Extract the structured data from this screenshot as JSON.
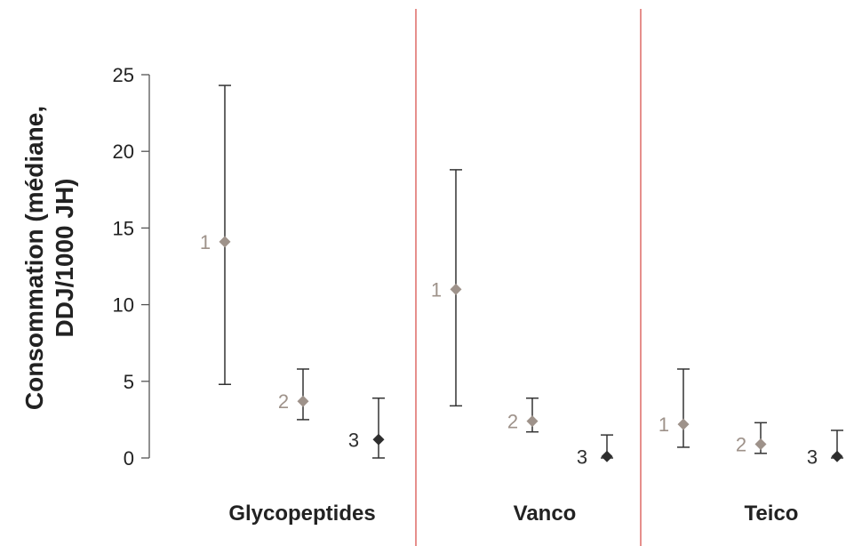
{
  "chart_data": {
    "type": "scatter",
    "ylabel_lines": [
      "Consommation (médiane,",
      "DDJ/1000 JH)"
    ],
    "ylim": [
      0,
      25
    ],
    "yticks": [
      0,
      5,
      10,
      15,
      20,
      25
    ],
    "grid": false,
    "groups": [
      {
        "name": "Glycopeptides",
        "points": [
          {
            "label": "1",
            "median": 14.1,
            "low": 4.8,
            "high": 24.3
          },
          {
            "label": "2",
            "median": 3.7,
            "low": 2.5,
            "high": 5.8
          },
          {
            "label": "3",
            "median": 1.2,
            "low": 0.0,
            "high": 3.9
          }
        ]
      },
      {
        "name": "Vanco",
        "points": [
          {
            "label": "1",
            "median": 11.0,
            "low": 3.4,
            "high": 18.8
          },
          {
            "label": "2",
            "median": 2.4,
            "low": 1.7,
            "high": 3.9
          },
          {
            "label": "3",
            "median": 0.1,
            "low": 0.0,
            "high": 1.5
          }
        ]
      },
      {
        "name": "Teico",
        "points": [
          {
            "label": "1",
            "median": 2.2,
            "low": 0.7,
            "high": 5.8
          },
          {
            "label": "2",
            "median": 0.9,
            "low": 0.3,
            "high": 2.3
          },
          {
            "label": "3",
            "median": 0.1,
            "low": 0.0,
            "high": 1.8
          }
        ]
      }
    ],
    "colors": {
      "1": "#9e928a",
      "2": "#9e928a",
      "3": "#2e2e2e",
      "errorbar": "#333333",
      "divider": "#d9534f",
      "axis": "#555555"
    }
  }
}
